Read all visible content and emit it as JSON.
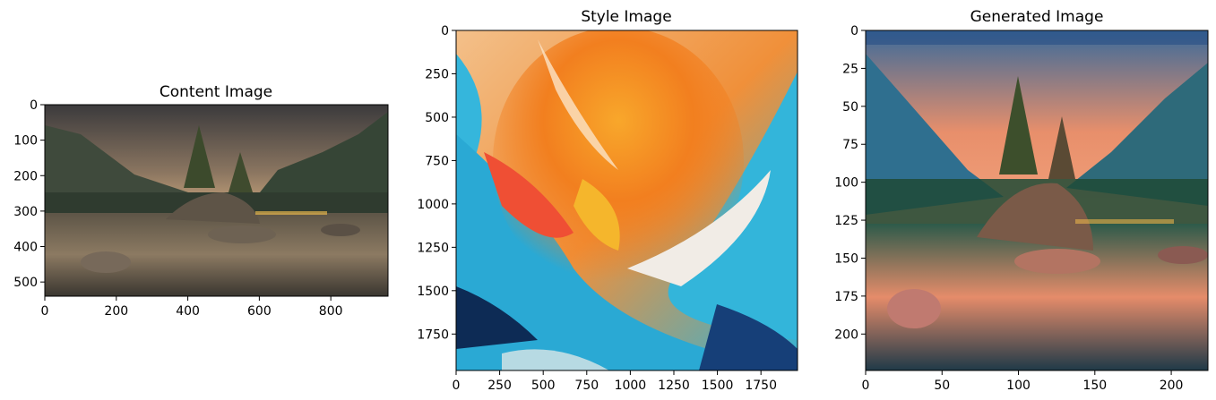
{
  "chart_data": [
    {
      "type": "image",
      "title": "Content Image",
      "image": "landscape-photo",
      "xlim": [
        0,
        960
      ],
      "ylim": [
        540,
        0
      ],
      "xticks": [
        0,
        200,
        400,
        600,
        800
      ],
      "yticks": [
        0,
        100,
        200,
        300,
        400,
        500
      ],
      "xticklabels": [
        "0",
        "200",
        "400",
        "600",
        "800"
      ],
      "yticklabels": [
        "0",
        "100",
        "200",
        "300",
        "400",
        "500"
      ]
    },
    {
      "type": "image",
      "title": "Style Image",
      "image": "abstract-paint-strokes",
      "xlim": [
        0,
        1960
      ],
      "ylim": [
        1960,
        0
      ],
      "xticks": [
        0,
        250,
        500,
        750,
        1000,
        1250,
        1500,
        1750
      ],
      "yticks": [
        0,
        250,
        500,
        750,
        1000,
        1250,
        1500,
        1750
      ],
      "xticklabels": [
        "0",
        "250",
        "500",
        "750",
        "1000",
        "1250",
        "1500",
        "1750"
      ],
      "yticklabels": [
        "0",
        "250",
        "500",
        "750",
        "1000",
        "1250",
        "1500",
        "1750"
      ]
    },
    {
      "type": "image",
      "title": "Generated Image",
      "image": "stylized-landscape",
      "xlim": [
        0,
        224
      ],
      "ylim": [
        224,
        0
      ],
      "xticks": [
        0,
        50,
        100,
        150,
        200
      ],
      "yticks": [
        0,
        25,
        50,
        75,
        100,
        125,
        150,
        175,
        200
      ],
      "xticklabels": [
        "0",
        "50",
        "100",
        "150",
        "200"
      ],
      "yticklabels": [
        "0",
        "25",
        "50",
        "75",
        "100",
        "125",
        "150",
        "175",
        "200"
      ]
    }
  ]
}
